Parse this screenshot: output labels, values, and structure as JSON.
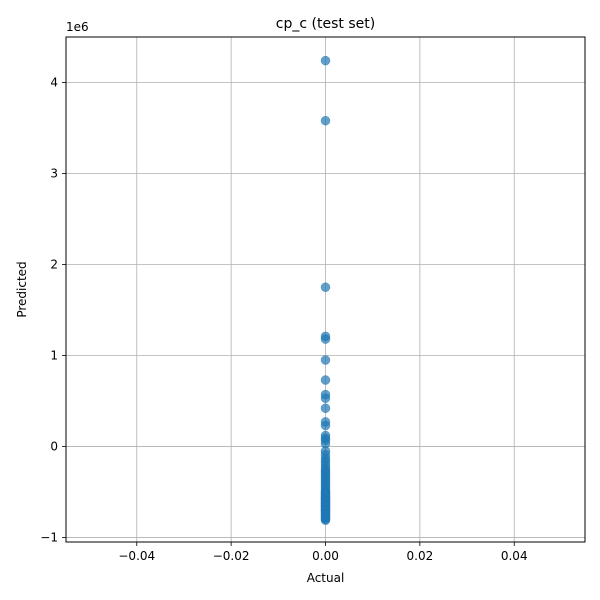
{
  "chart_data": {
    "type": "scatter",
    "title": "cp_c (test set)",
    "xlabel": "Actual",
    "ylabel": "Predicted",
    "y_offset_label": "1e6",
    "xlim": [
      -0.055,
      0.055
    ],
    "ylim": [
      -1.05,
      4.5
    ],
    "x_ticks": [
      -0.04,
      -0.02,
      0.0,
      0.02,
      0.04
    ],
    "x_tick_labels": [
      "−0.04",
      "−0.02",
      "0.00",
      "0.02",
      "0.04"
    ],
    "y_ticks": [
      -1,
      0,
      1,
      2,
      3,
      4
    ],
    "y_tick_labels": [
      "−1",
      "0",
      "1",
      "2",
      "3",
      "4"
    ],
    "grid": true,
    "marker_color": "#1f77b4",
    "marker_alpha": 0.7,
    "series": [
      {
        "x": [
          0,
          0,
          0,
          0,
          0,
          0,
          0,
          0,
          0,
          0,
          0,
          0,
          0,
          0,
          0,
          0,
          0,
          0,
          0,
          0,
          0,
          0,
          0,
          0,
          0,
          0,
          0,
          0,
          0,
          0,
          0,
          0,
          0,
          0,
          0,
          0,
          0,
          0,
          0,
          0,
          0,
          0,
          0,
          0,
          0,
          0,
          0,
          0,
          0,
          0,
          0,
          0,
          0,
          0,
          0,
          0,
          0,
          0,
          0,
          0,
          0,
          0,
          0,
          0,
          0,
          0,
          0,
          0,
          0,
          0,
          0
        ],
        "y": [
          4.24,
          3.58,
          1.75,
          1.21,
          1.18,
          0.95,
          0.73,
          0.57,
          0.53,
          0.42,
          0.27,
          0.23,
          0.12,
          0.09,
          0.07,
          0.03,
          -0.05,
          -0.09,
          -0.13,
          -0.16,
          -0.19,
          -0.22,
          -0.25,
          -0.27,
          -0.29,
          -0.31,
          -0.33,
          -0.35,
          -0.37,
          -0.39,
          -0.41,
          -0.43,
          -0.45,
          -0.47,
          -0.49,
          -0.5,
          -0.51,
          -0.52,
          -0.53,
          -0.54,
          -0.55,
          -0.56,
          -0.57,
          -0.58,
          -0.59,
          -0.6,
          -0.61,
          -0.62,
          -0.63,
          -0.64,
          -0.65,
          -0.66,
          -0.67,
          -0.68,
          -0.69,
          -0.7,
          -0.71,
          -0.72,
          -0.73,
          -0.74,
          -0.75,
          -0.76,
          -0.77,
          -0.78,
          -0.79,
          -0.8,
          -0.81,
          -0.58,
          -0.62,
          -0.66,
          -0.7
        ]
      }
    ]
  }
}
